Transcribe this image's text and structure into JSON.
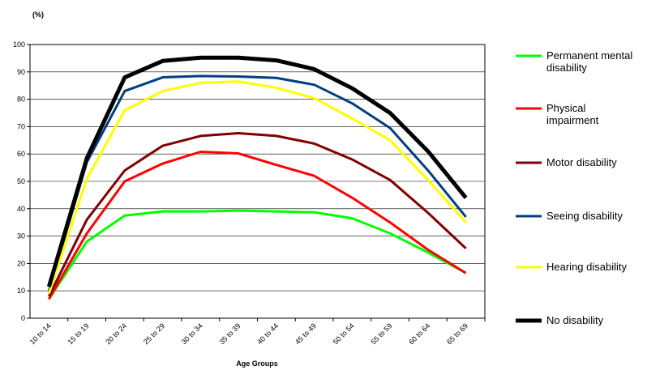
{
  "chart_data": {
    "type": "line",
    "y_unit_label": "(%)",
    "x_label": "Age Groups",
    "categories": [
      "10 to 14",
      "15 to 19",
      "20 to 24",
      "25 to 29",
      "30 to 34",
      "35 to 39",
      "40 to 44",
      "45 to 49",
      "50 to 54",
      "55 to 59",
      "60 to 64",
      "65 to 69"
    ],
    "ylim": [
      0,
      100
    ],
    "yticks": [
      0,
      10,
      20,
      30,
      40,
      50,
      60,
      70,
      80,
      90,
      100
    ],
    "grid": true,
    "legend": "right",
    "series": [
      {
        "name": "Permanent mental disability",
        "color": "#00ff00",
        "values": [
          7,
          28,
          37.5,
          39,
          39,
          39.3,
          39,
          38.7,
          36.5,
          31,
          24,
          16.5
        ]
      },
      {
        "name": "Physical impairment",
        "color": "#ff0000",
        "values": [
          7,
          31,
          50,
          56.5,
          60.8,
          60.2,
          56,
          52,
          44,
          35,
          25,
          16.5
        ]
      },
      {
        "name": "Motor disability",
        "color": "#800000",
        "values": [
          8,
          36,
          54,
          63,
          66.6,
          67.6,
          66.6,
          63.8,
          58,
          50.5,
          38.5,
          25.5
        ]
      },
      {
        "name": "Seeing disability",
        "color": "#003f80",
        "values": [
          10,
          57,
          83,
          88,
          88.5,
          88.3,
          87.8,
          85.3,
          78.5,
          69.5,
          54,
          37
        ]
      },
      {
        "name": "Hearing disability",
        "color": "#ffff00",
        "values": [
          9,
          51,
          76,
          83,
          86,
          86.5,
          84.2,
          80.4,
          73,
          65,
          50.5,
          35
        ]
      },
      {
        "name": "No disability",
        "color": "#000000",
        "values": [
          11.5,
          58.5,
          88,
          94,
          95.2,
          95.2,
          94.2,
          91,
          84,
          75,
          61,
          44
        ]
      }
    ]
  }
}
